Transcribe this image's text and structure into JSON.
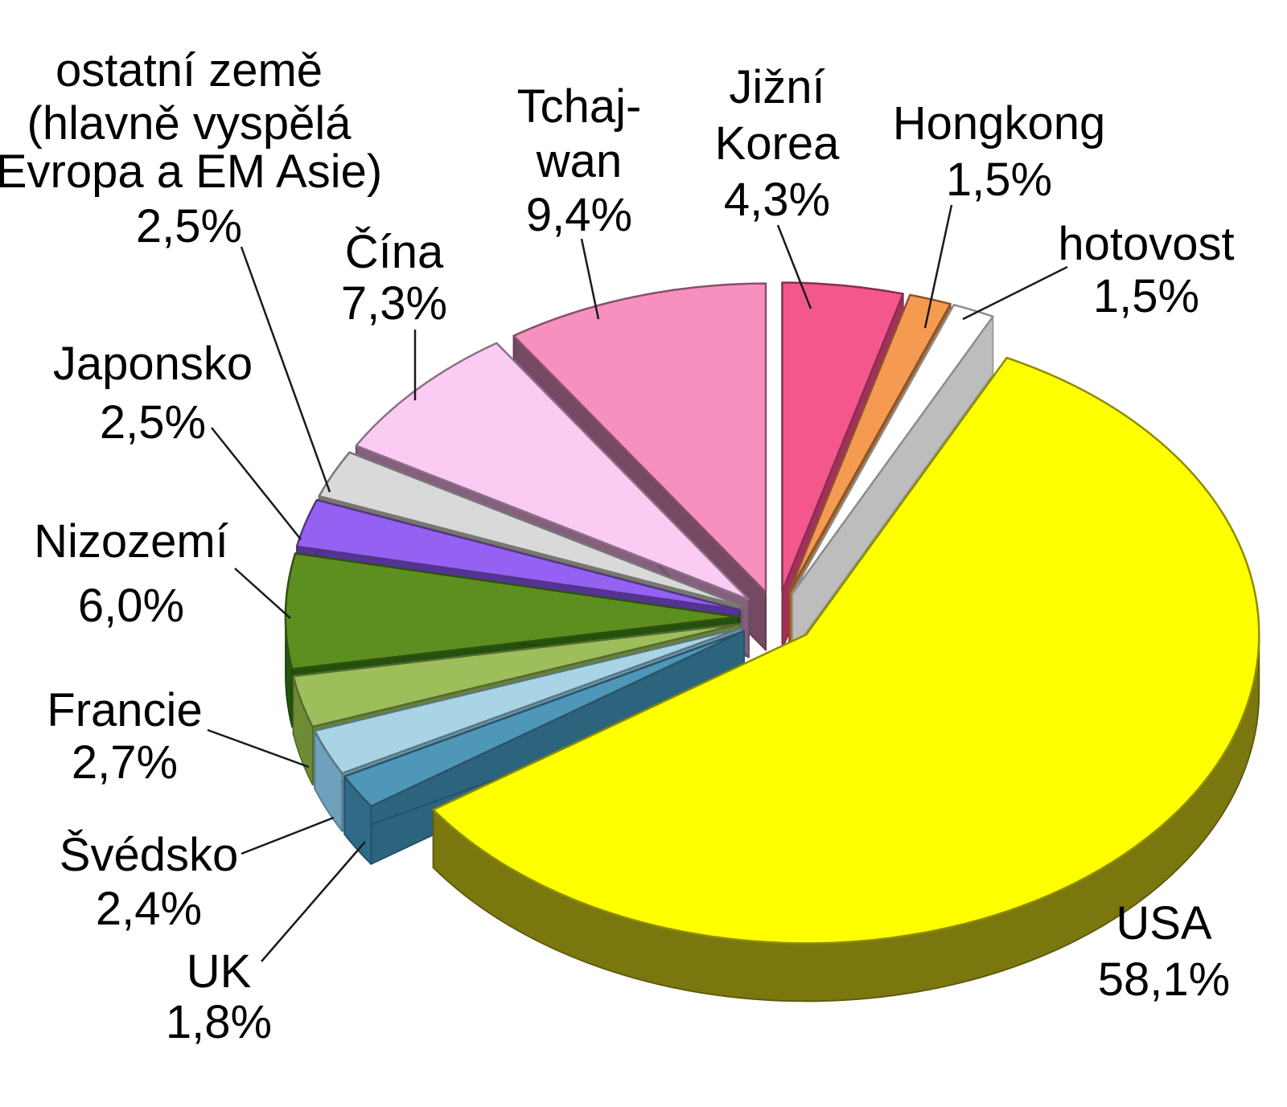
{
  "figure": {
    "background": "#FFFFFF",
    "description": "3D exploded pie chart of shares by country"
  },
  "chart_data": {
    "type": "pie",
    "style": "3d-exploded",
    "direction": "clockwise",
    "start_angle_deg": 0,
    "value_unit": "%",
    "total": 100.0,
    "grid": false,
    "legend_position": "none",
    "slices": [
      {
        "id": "jizni-korea",
        "label": "Jižní Korea",
        "label_lines": [
          "Jižní",
          "Korea",
          "4,3%"
        ],
        "value": 4.3,
        "display_value": "4,3%",
        "color": "#F4568E",
        "side_color": "#AE3263"
      },
      {
        "id": "hongkong",
        "label": "Hongkong",
        "label_lines": [
          "Hongkong",
          "1,5%"
        ],
        "value": 1.5,
        "display_value": "1,5%",
        "color": "#F59B51",
        "side_color": "#B5661F"
      },
      {
        "id": "hotovost",
        "label": "hotovost",
        "label_lines": [
          "hotovost",
          "1,5%"
        ],
        "value": 1.5,
        "display_value": "1,5%",
        "color": "#FFFFFF",
        "side_color": "#C9C9C9"
      },
      {
        "id": "usa",
        "label": "USA",
        "label_lines": [
          "USA",
          "58,1%"
        ],
        "value": 58.1,
        "display_value": "58,1%",
        "color": "#FFFF00",
        "side_color": "#7B770F"
      },
      {
        "id": "uk",
        "label": "UK",
        "label_lines": [
          "UK",
          "1,8%"
        ],
        "value": 1.8,
        "display_value": "1,8%",
        "color": "#4E97B9",
        "side_color": "#2F6A86"
      },
      {
        "id": "svedsko",
        "label": "Švédsko",
        "label_lines": [
          "Švédsko",
          "2,4%"
        ],
        "value": 2.4,
        "display_value": "2,4%",
        "color": "#A9D4E6",
        "side_color": "#6FA0BC"
      },
      {
        "id": "francie",
        "label": "Francie",
        "label_lines": [
          "Francie",
          "2,7%"
        ],
        "value": 2.7,
        "display_value": "2,7%",
        "color": "#9DBE5B",
        "side_color": "#6E8C36"
      },
      {
        "id": "nizozemi",
        "label": "Nizozemí",
        "label_lines": [
          "Nizozemí",
          "6,0%"
        ],
        "value": 6.0,
        "display_value": "6,0%",
        "color": "#5C8F1F",
        "side_color": "#24560E"
      },
      {
        "id": "japonsko",
        "label": "Japonsko",
        "label_lines": [
          "Japonsko",
          "2,5%"
        ],
        "value": 2.5,
        "display_value": "2,5%",
        "color": "#9561F2",
        "side_color": "#5936A0"
      },
      {
        "id": "ostatni-zeme",
        "label": "ostatní země (hlavně vyspělá Evropa a EM Asie)",
        "label_lines": [
          "ostatní země",
          "(hlavně vyspělá",
          "Evropa a EM Asie)",
          "2,5%"
        ],
        "value": 2.5,
        "display_value": "2,5%",
        "color": "#D9D9D9",
        "side_color": "#80806E"
      },
      {
        "id": "cina",
        "label": "Čína",
        "label_lines": [
          "Čína",
          "7,3%"
        ],
        "value": 7.3,
        "display_value": "7,3%",
        "color": "#FBCBF3",
        "side_color": "#8E6585"
      },
      {
        "id": "tchaj-wan",
        "label": "Tchaj-wan",
        "label_lines": [
          "Tchaj-",
          "wan",
          "9,4%"
        ],
        "value": 9.4,
        "display_value": "9,4%",
        "color": "#F78FBF",
        "side_color": "#7E4E68"
      }
    ]
  }
}
